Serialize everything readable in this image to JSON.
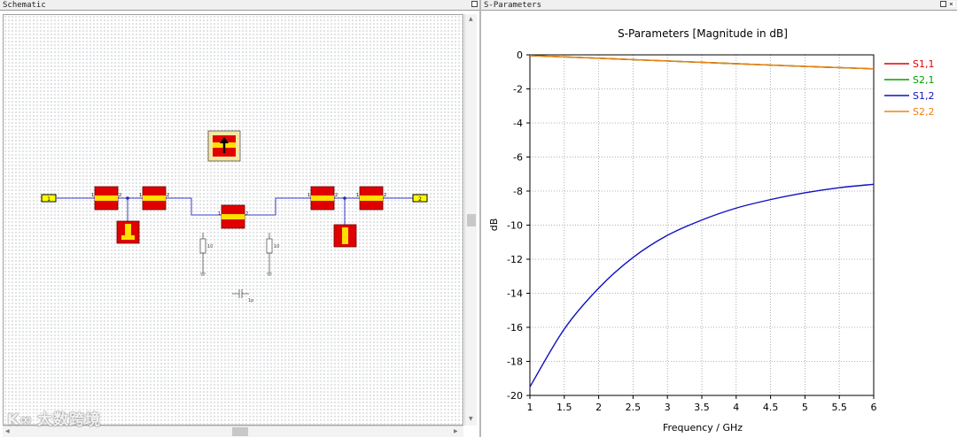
{
  "schematic": {
    "title": "Schematic",
    "ports": [
      {
        "id": "p1",
        "label": "1"
      },
      {
        "id": "p2",
        "label": "2"
      }
    ],
    "resistors": [
      {
        "id": "r1",
        "value": "10"
      },
      {
        "id": "r2",
        "value": "10"
      }
    ],
    "capacitor": {
      "value": "1p"
    },
    "line_pin_labels": [
      "1",
      "2"
    ],
    "watermark": "大数跨境"
  },
  "sparams": {
    "title": "S-Parameters",
    "colors": {
      "s11": "#e00000",
      "s21": "#00a000",
      "s12": "#1010c0",
      "s22": "#f08010"
    }
  },
  "chart_data": {
    "type": "line",
    "title": "S-Parameters [Magnitude in dB]",
    "xlabel": "Frequency / GHz",
    "ylabel": "dB",
    "xlim": [
      1,
      6
    ],
    "ylim": [
      -20,
      0
    ],
    "xticks": [
      1,
      1.5,
      2,
      2.5,
      3,
      3.5,
      4,
      4.5,
      5,
      5.5,
      6
    ],
    "yticks": [
      0,
      -2,
      -4,
      -6,
      -8,
      -10,
      -12,
      -14,
      -16,
      -18,
      -20
    ],
    "grid": true,
    "legend_position": "right",
    "x": [
      1,
      1.5,
      2,
      2.5,
      3,
      3.5,
      4,
      4.5,
      5,
      5.5,
      6
    ],
    "series": [
      {
        "name": "S1,1",
        "color": "#e00000",
        "values": [
          -0.05,
          -0.12,
          -0.2,
          -0.28,
          -0.36,
          -0.44,
          -0.52,
          -0.6,
          -0.68,
          -0.75,
          -0.82
        ]
      },
      {
        "name": "S2,1",
        "color": "#00a000",
        "values": [
          -0.05,
          -0.12,
          -0.2,
          -0.28,
          -0.36,
          -0.44,
          -0.52,
          -0.6,
          -0.68,
          -0.75,
          -0.82
        ]
      },
      {
        "name": "S1,2",
        "color": "#1010c0",
        "values": [
          -19.5,
          -16.1,
          -13.7,
          -11.9,
          -10.6,
          -9.7,
          -9.0,
          -8.5,
          -8.1,
          -7.8,
          -7.6
        ]
      },
      {
        "name": "S2,2",
        "color": "#f08010",
        "values": [
          -0.05,
          -0.12,
          -0.2,
          -0.28,
          -0.36,
          -0.44,
          -0.52,
          -0.6,
          -0.68,
          -0.75,
          -0.82
        ]
      }
    ]
  }
}
